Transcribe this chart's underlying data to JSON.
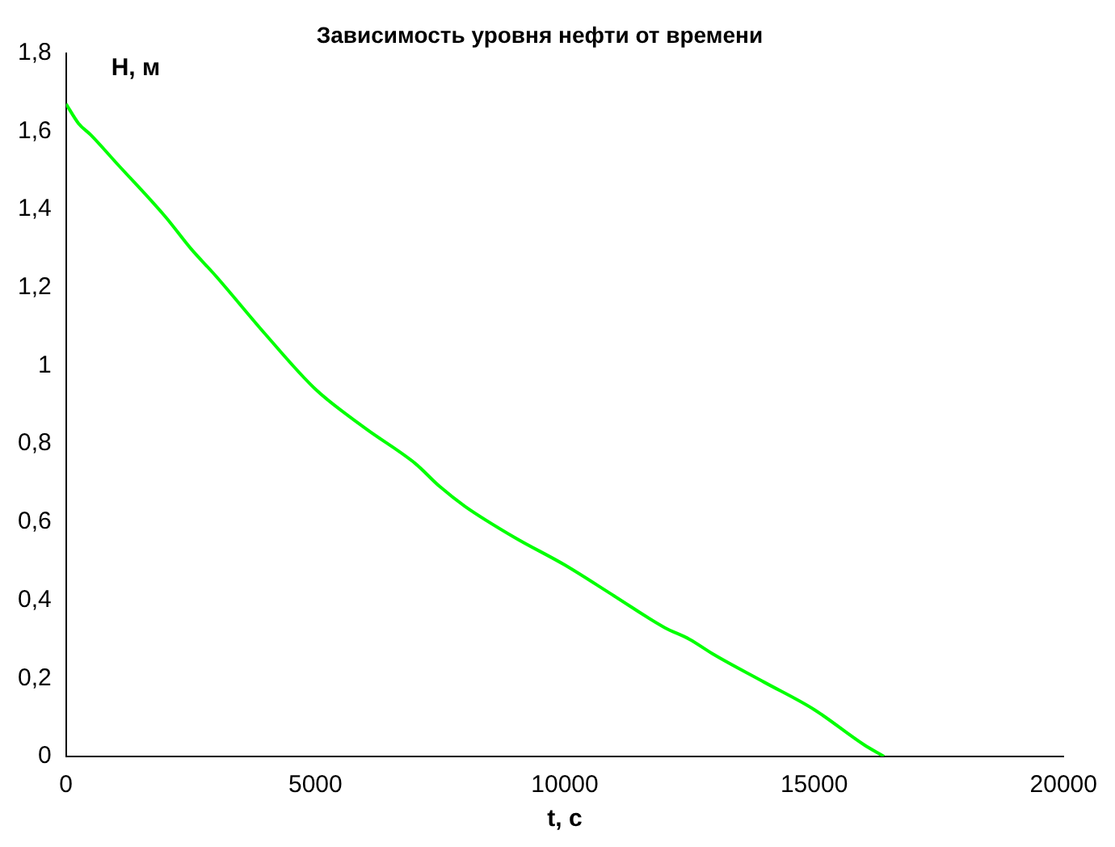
{
  "chart_data": {
    "type": "line",
    "title": "Зависимость уровня нефти от времени",
    "xlabel": "t, с",
    "ylabel": "H, м",
    "x": [
      0,
      250,
      500,
      1000,
      2000,
      2500,
      3000,
      4000,
      5000,
      6000,
      7000,
      7500,
      8000,
      9000,
      10000,
      11000,
      12000,
      12500,
      13000,
      14000,
      15000,
      16000,
      16400
    ],
    "series": [
      {
        "color": "#00ff00",
        "values": [
          1.67,
          1.62,
          1.59,
          1.52,
          1.38,
          1.3,
          1.23,
          1.08,
          0.94,
          0.84,
          0.75,
          0.69,
          0.64,
          0.56,
          0.49,
          0.41,
          0.33,
          0.3,
          0.26,
          0.19,
          0.12,
          0.03,
          0
        ]
      }
    ],
    "xlim": [
      0,
      20000
    ],
    "xticks": [
      0,
      5000,
      10000,
      15000,
      20000
    ],
    "ylim": [
      0,
      1.8
    ],
    "yticks": [
      0,
      {
        "value": 0.2,
        "label": "0,2"
      },
      {
        "value": 0.4,
        "label": "0,4"
      },
      {
        "value": 0.6,
        "label": "0,6"
      },
      {
        "value": 0.8,
        "label": "0,8"
      },
      1,
      {
        "value": 1.2,
        "label": "1,2"
      },
      {
        "value": 1.4,
        "label": "1,4"
      },
      {
        "value": 1.6,
        "label": "1,6"
      },
      {
        "value": 1.8,
        "label": "1,8"
      }
    ],
    "grid": false,
    "legend": false,
    "marker": "none",
    "line_style": "solid"
  }
}
